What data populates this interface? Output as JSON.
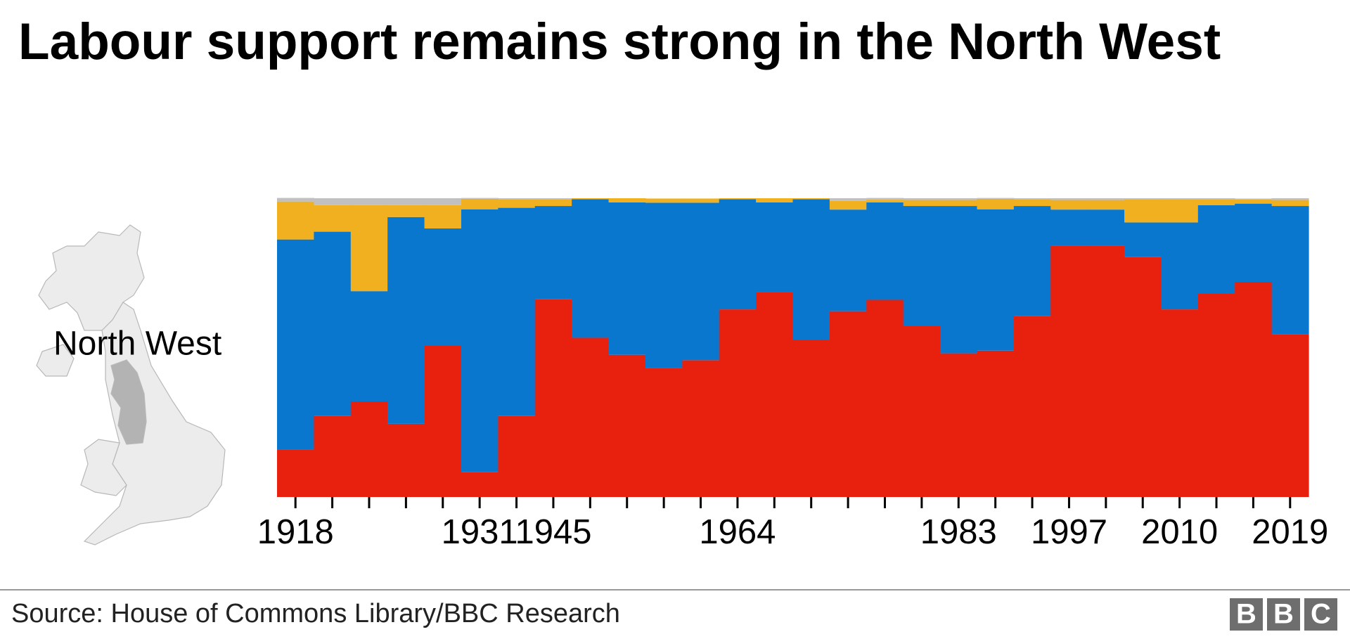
{
  "chart_data": {
    "type": "bar",
    "stacked": true,
    "title": "Labour support remains strong in the North West",
    "region_label": "North West",
    "source": "Source: House of Commons Library/BBC Research",
    "logo": [
      "B",
      "B",
      "C"
    ],
    "categories": [
      "1918",
      null,
      null,
      null,
      null,
      "1931",
      null,
      "1945",
      null,
      null,
      null,
      null,
      "1964",
      null,
      null,
      null,
      null,
      null,
      "1983",
      null,
      null,
      "1997",
      null,
      null,
      "2010",
      null,
      null,
      "2019"
    ],
    "ylim": [
      0,
      100
    ],
    "series": [
      {
        "color": "#e8210f",
        "values": [
          15.9,
          27.1,
          32.0,
          24.5,
          50.7,
          8.4,
          27.1,
          66.3,
          53.3,
          47.6,
          43.2,
          45.8,
          62.8,
          68.6,
          52.7,
          62.2,
          66.0,
          57.3,
          48.1,
          49.0,
          60.5,
          84.1,
          84.1,
          80.4,
          62.8,
          68.0,
          72.0,
          54.5
        ]
      },
      {
        "color": "#0a77ce",
        "values": [
          70.3,
          61.7,
          36.9,
          69.2,
          39.2,
          87.9,
          69.7,
          31.1,
          46.4,
          51.0,
          55.3,
          52.7,
          36.9,
          30.0,
          47.0,
          34.0,
          32.6,
          40.1,
          49.3,
          47.3,
          36.9,
          12.1,
          12.1,
          11.5,
          29.1,
          29.7,
          26.2,
          42.9
        ]
      },
      {
        "color": "#f0b020",
        "values": [
          12.7,
          8.9,
          28.8,
          4.0,
          7.8,
          3.5,
          2.9,
          2.3,
          0.3,
          1.4,
          1.4,
          1.4,
          0.3,
          1.4,
          0.3,
          2.9,
          0.9,
          2.0,
          2.0,
          3.5,
          2.3,
          3.2,
          3.2,
          7.8,
          7.8,
          2.0,
          1.4,
          2.0
        ]
      },
      {
        "color": "#c0c0c0",
        "values": [
          1.2,
          2.3,
          2.3,
          2.3,
          2.3,
          0.3,
          0.3,
          0.3,
          0,
          0,
          0,
          0,
          0,
          0,
          0,
          0.9,
          0.6,
          0.6,
          0.6,
          0.3,
          0.3,
          0.6,
          0.6,
          0.3,
          0.3,
          0.3,
          0.3,
          0.6
        ]
      }
    ]
  }
}
